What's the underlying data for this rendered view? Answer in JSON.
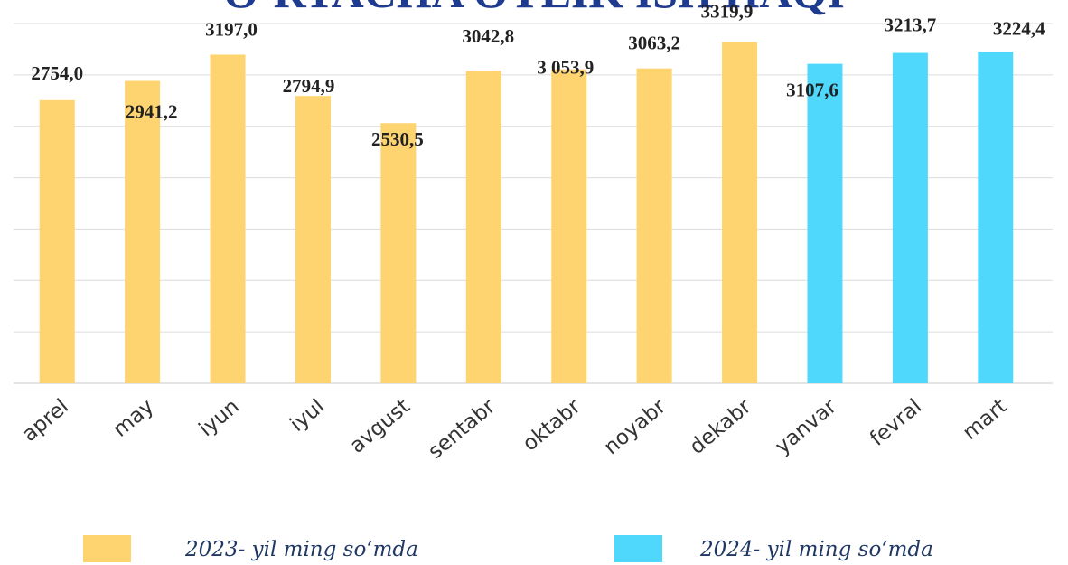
{
  "chart_data": {
    "type": "bar",
    "title": "O‘RTACHA OYLIK ISH HAQI",
    "categories": [
      "aprel",
      "may",
      "iyun",
      "iyul",
      "avgust",
      "sentabr",
      "oktabr",
      "noyabr",
      "dekabr",
      "yanvar",
      "fevral",
      "mart"
    ],
    "series": [
      {
        "name": "2023- yil ming so‘mda",
        "color": "#fdd46f",
        "values": [
          2754.0,
          2941.2,
          3197.0,
          2794.9,
          2530.5,
          3042.8,
          3053.9,
          3063.2,
          3319.9,
          null,
          null,
          null
        ],
        "value_labels": [
          "2754,0",
          "2941,2",
          "3197,0",
          "2794,9",
          "2530,5",
          "3042,8",
          "3 053,9",
          "3063,2",
          "3319,9",
          null,
          null,
          null
        ]
      },
      {
        "name": "2024- yil ming so‘mda",
        "color": "#4fd8fc",
        "values": [
          null,
          null,
          null,
          null,
          null,
          null,
          null,
          null,
          null,
          3107.6,
          3213.7,
          3224.4
        ],
        "value_labels": [
          null,
          null,
          null,
          null,
          null,
          null,
          null,
          null,
          null,
          "3107,6",
          "3213,7",
          "3224,4"
        ]
      }
    ],
    "ylim": [
      0,
      3500
    ],
    "yticks": [
      0,
      500,
      1000,
      1500,
      2000,
      2500,
      3000,
      3500
    ],
    "grid": true
  }
}
